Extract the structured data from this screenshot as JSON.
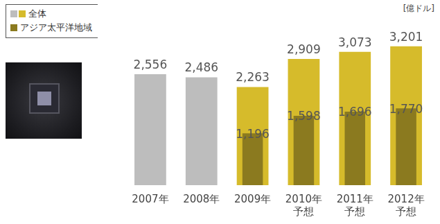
{
  "chart_data": {
    "type": "bar",
    "ylabel": "[億ドル]",
    "categories": [
      "2007年",
      "2008年",
      "2009年",
      "2010年\n予想",
      "2011年\n予想",
      "2012年\n予想"
    ],
    "series": [
      {
        "name": "全体",
        "colors": [
          "#bdbdbd",
          "#bdbdbd",
          "#d6bb2b",
          "#d6bb2b",
          "#d6bb2b",
          "#d6bb2b"
        ],
        "values": [
          2556,
          2486,
          2263,
          2909,
          3073,
          3201
        ],
        "value_labels": [
          "2,556",
          "2,486",
          "2,263",
          "2,909",
          "3,073",
          "3,201"
        ]
      },
      {
        "name": "アジア太平洋地域",
        "color": "#8b7a1f",
        "values": [
          null,
          null,
          1196,
          1598,
          1696,
          1770
        ],
        "value_labels": [
          null,
          null,
          "1,196",
          "1,598",
          "1,696",
          "1,770"
        ]
      }
    ],
    "data_labels": true,
    "grid": false,
    "tick_labels": "x",
    "legend": "top-left"
  }
}
